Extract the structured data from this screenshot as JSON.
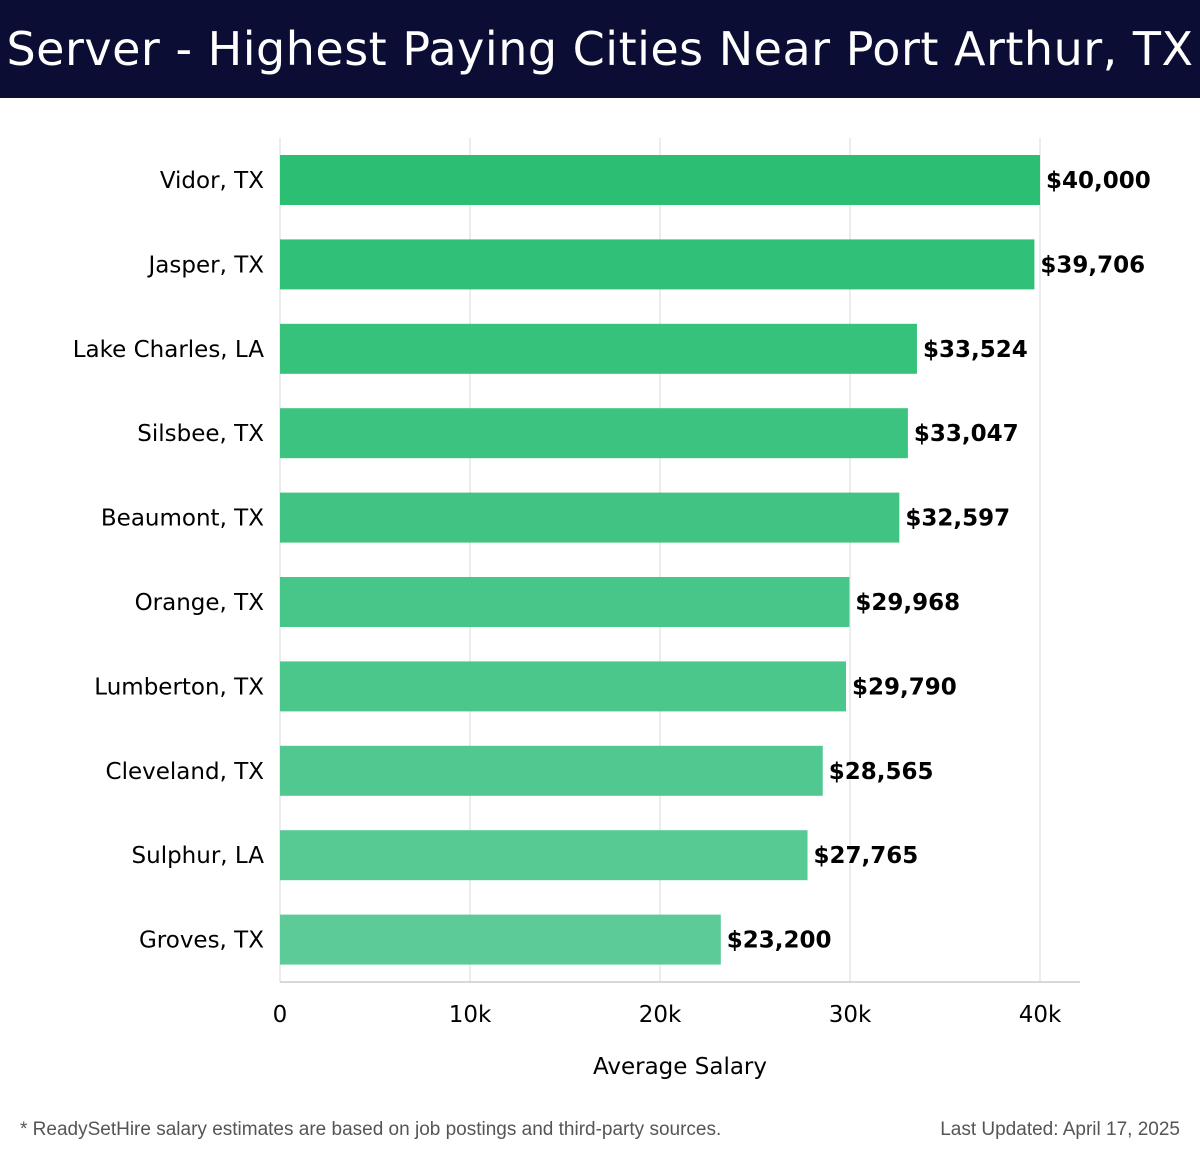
{
  "header": {
    "title": "Server - Highest Paying Cities Near Port Arthur, TX"
  },
  "colors": {
    "header_bg": "#0b0d35",
    "bar_top": "#2bbf73",
    "bar_bottom": "#5ccb98",
    "grid": "#e6e6e6",
    "axis": "#cccccc",
    "text": "#000000"
  },
  "chart_data": {
    "type": "bar",
    "orientation": "horizontal",
    "title": "Server - Highest Paying Cities Near Port Arthur, TX",
    "xlabel": "Average Salary",
    "ylabel": "",
    "xlim": [
      0,
      42000
    ],
    "xticks": [
      0,
      10000,
      20000,
      30000,
      40000
    ],
    "xtick_labels": [
      "0",
      "10k",
      "20k",
      "30k",
      "40k"
    ],
    "grid": true,
    "categories": [
      "Vidor, TX",
      "Jasper, TX",
      "Lake Charles, LA",
      "Silsbee, TX",
      "Beaumont, TX",
      "Orange, TX",
      "Lumberton, TX",
      "Cleveland, TX",
      "Sulphur, LA",
      "Groves, TX"
    ],
    "values": [
      40000,
      39706,
      33524,
      33047,
      32597,
      29968,
      29790,
      28565,
      27765,
      23200
    ],
    "value_labels": [
      "$40,000",
      "$39,706",
      "$33,524",
      "$33,047",
      "$32,597",
      "$29,968",
      "$29,790",
      "$28,565",
      "$27,765",
      "$23,200"
    ]
  },
  "footer": {
    "note": "* ReadySetHire salary estimates are based on job postings and third-party sources.",
    "updated": "Last Updated: April 17, 2025"
  }
}
